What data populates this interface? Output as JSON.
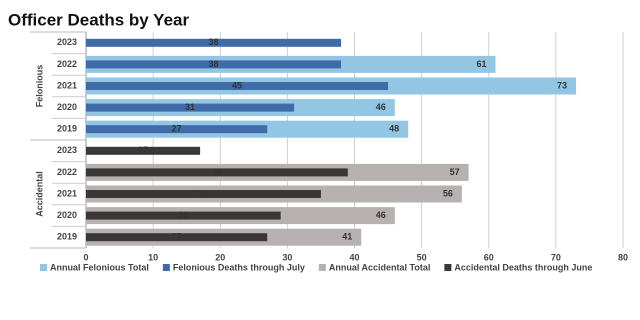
{
  "chart_data": {
    "type": "bar",
    "orientation": "horizontal",
    "title": "Officer Deaths by Year",
    "groups": [
      {
        "name": "Felonious",
        "categories": [
          "2023",
          "2022",
          "2021",
          "2020",
          "2019"
        ]
      },
      {
        "name": "Accidental",
        "categories": [
          "2023",
          "2022",
          "2021",
          "2020",
          "2019"
        ]
      }
    ],
    "series": [
      {
        "name": "Annual Felonious Total",
        "color": "#93c6e2",
        "role": "total",
        "values": [
          null,
          61,
          73,
          46,
          48,
          null,
          null,
          null,
          null,
          null
        ]
      },
      {
        "name": "Felonious Deaths through July",
        "color": "#3f6ba8",
        "role": "partial",
        "values": [
          38,
          38,
          45,
          31,
          27,
          null,
          null,
          null,
          null,
          null
        ]
      },
      {
        "name": "Annual Accidental Total",
        "color": "#b7b1b1",
        "role": "total",
        "values": [
          null,
          null,
          null,
          null,
          null,
          null,
          57,
          56,
          46,
          41
        ]
      },
      {
        "name": "Accidental Deaths through June",
        "color": "#3b3737",
        "role": "partial",
        "values": [
          null,
          null,
          null,
          null,
          null,
          17,
          39,
          35,
          29,
          27
        ]
      }
    ],
    "xlim": [
      0,
      80
    ],
    "xticks": [
      0,
      10,
      20,
      30,
      40,
      50,
      60,
      70,
      80
    ],
    "grid": true
  }
}
